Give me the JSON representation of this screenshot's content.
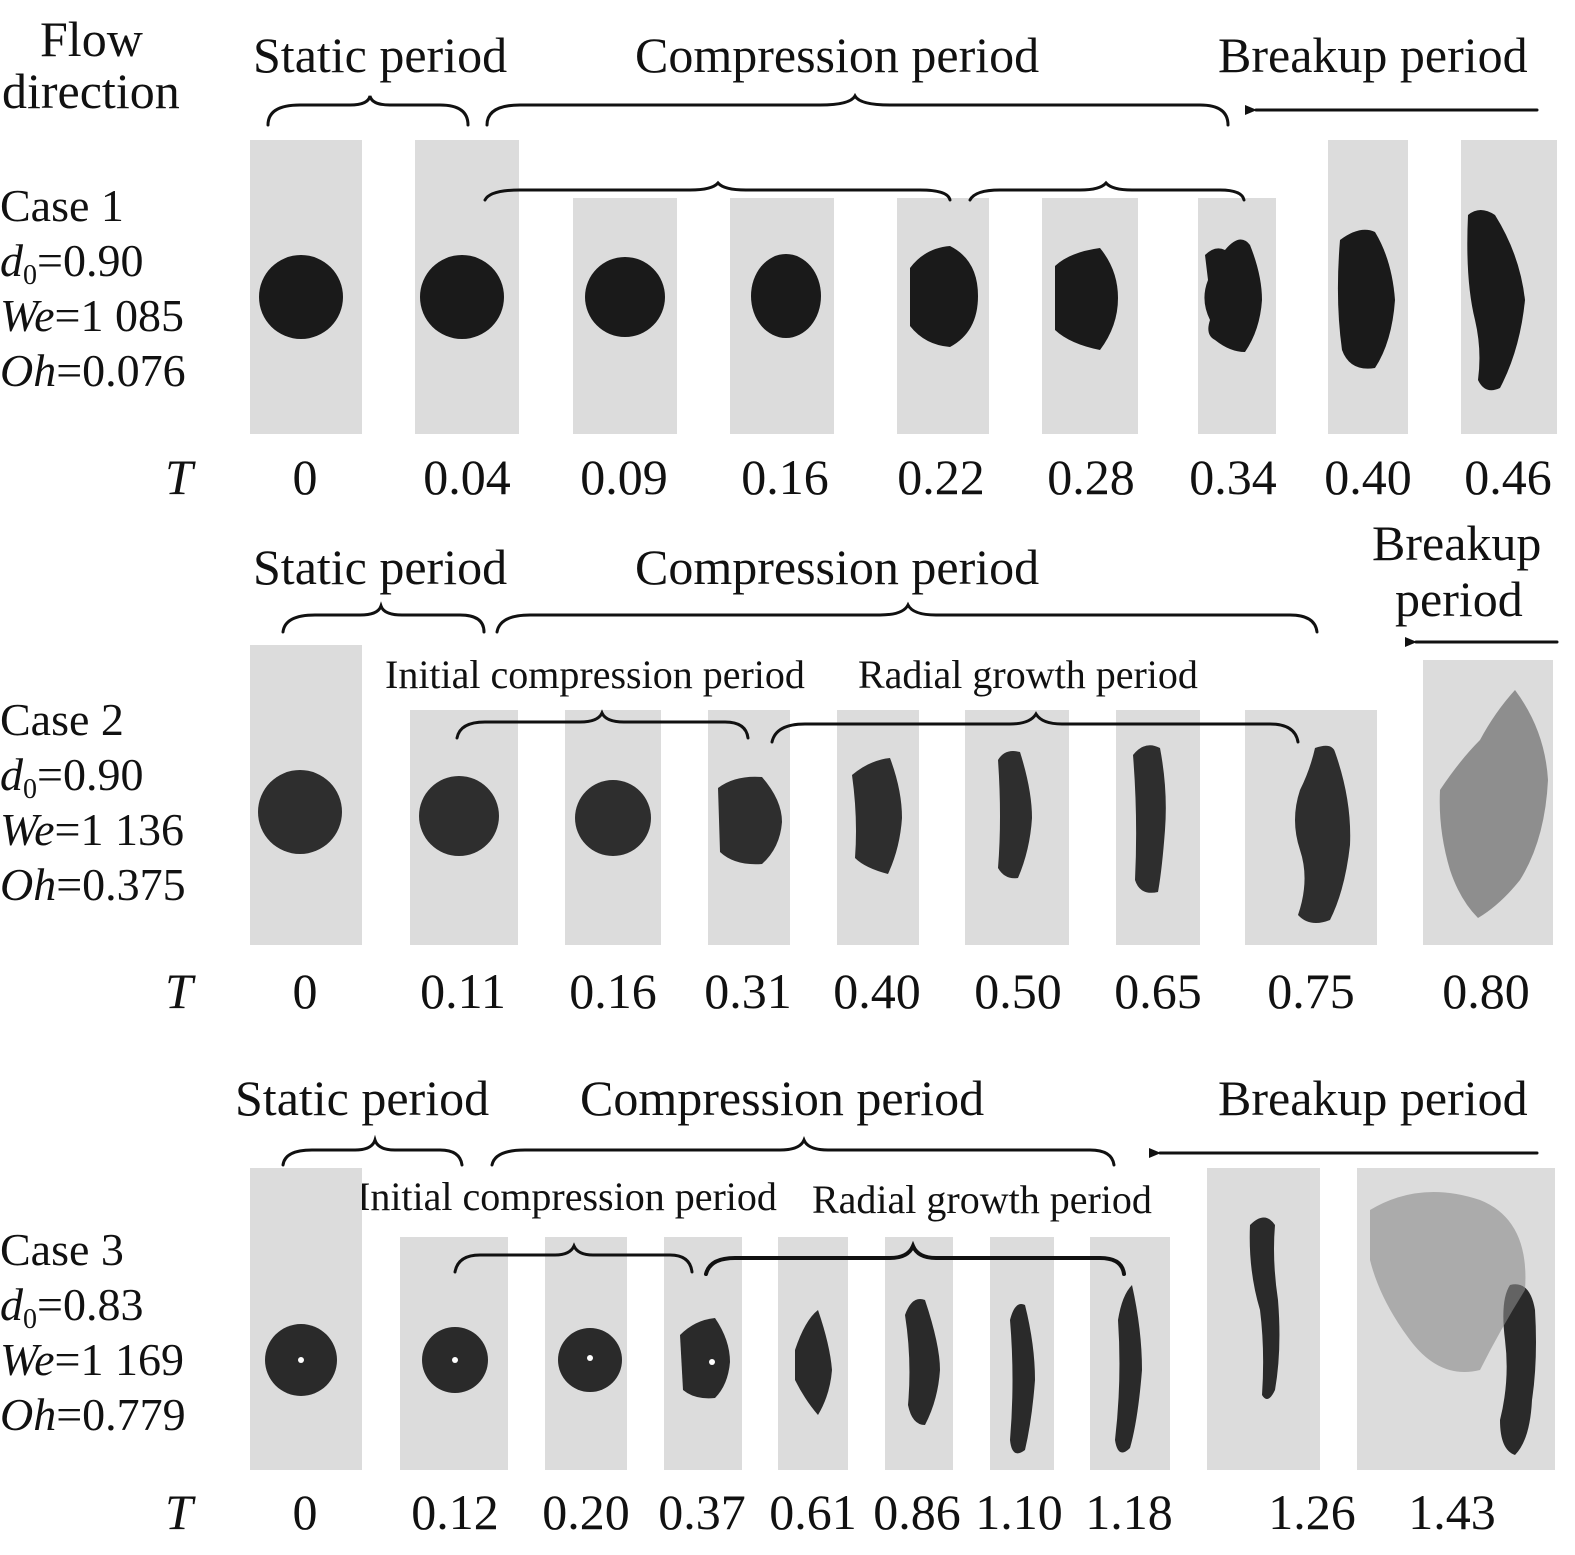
{
  "flow_label": [
    "Flow",
    "direction"
  ],
  "T_symbol": "T",
  "rows": [
    {
      "case_lines": [
        {
          "prefix": "Case 1",
          "var": "",
          "subscript": "",
          "value": ""
        },
        {
          "prefix": "",
          "var": "d",
          "subscript": "0",
          "value": "=0.90"
        },
        {
          "prefix": "",
          "var": "We",
          "subscript": "",
          "value": "=1 085"
        },
        {
          "prefix": "",
          "var": "Oh",
          "subscript": "",
          "value": "=0.076"
        }
      ],
      "periods": {
        "static": "Static period",
        "compression": "Compression period",
        "breakup": "Breakup period"
      },
      "subperiods": {
        "initial": "",
        "radial": ""
      },
      "T_values": [
        "0",
        "0.04",
        "0.09",
        "0.16",
        "0.22",
        "0.28",
        "0.34",
        "0.40",
        "0.46"
      ]
    },
    {
      "case_lines": [
        {
          "prefix": "Case 2",
          "var": "",
          "subscript": "",
          "value": ""
        },
        {
          "prefix": "",
          "var": "d",
          "subscript": "0",
          "value": "=0.90"
        },
        {
          "prefix": "",
          "var": "We",
          "subscript": "",
          "value": "=1 136"
        },
        {
          "prefix": "",
          "var": "Oh",
          "subscript": "",
          "value": "=0.375"
        }
      ],
      "periods": {
        "static": "Static period",
        "compression": "Compression period",
        "breakup": [
          "Breakup",
          "period"
        ]
      },
      "subperiods": {
        "initial": "Initial compression period",
        "radial": "Radial growth period"
      },
      "T_values": [
        "0",
        "0.11",
        "0.16",
        "0.31",
        "0.40",
        "0.50",
        "0.65",
        "0.75",
        "0.80"
      ]
    },
    {
      "case_lines": [
        {
          "prefix": "Case 3",
          "var": "",
          "subscript": "",
          "value": ""
        },
        {
          "prefix": "",
          "var": "d",
          "subscript": "0",
          "value": "=0.83"
        },
        {
          "prefix": "",
          "var": "We",
          "subscript": "",
          "value": "=1 169"
        },
        {
          "prefix": "",
          "var": "Oh",
          "subscript": "",
          "value": "=0.779"
        }
      ],
      "periods": {
        "static": "Static period",
        "compression": "Compression period",
        "breakup": "Breakup period"
      },
      "subperiods": {
        "initial": "Initial compression period",
        "radial": "Radial growth period"
      },
      "T_values": [
        "0",
        "0.12",
        "0.20",
        "0.37",
        "0.61",
        "0.86",
        "1.10",
        "1.18",
        "1.26",
        "1.43"
      ]
    }
  ]
}
